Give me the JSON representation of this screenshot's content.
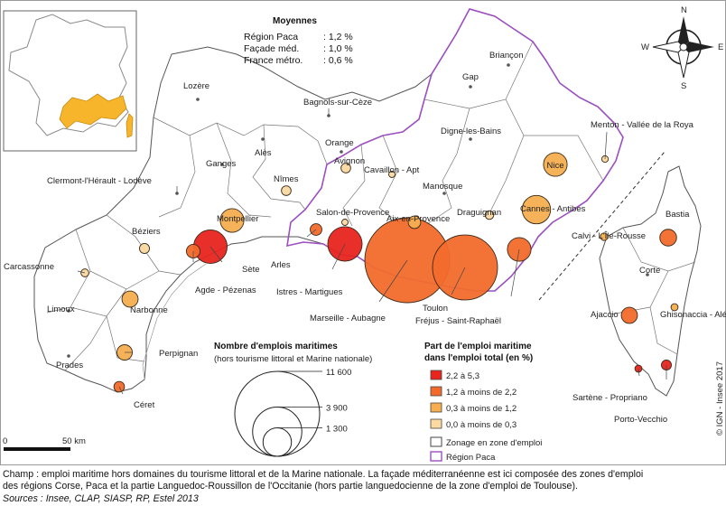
{
  "averages": {
    "title": "Moyennes",
    "rows": [
      {
        "label": "Région Paca",
        "value": ": 1,2 %"
      },
      {
        "label": "Façade méd.",
        "value": ": 1,0 %"
      },
      {
        "label": "France métro.",
        "value": ": 0,6 %"
      }
    ]
  },
  "compass": {
    "n": "N",
    "s": "S",
    "e": "E",
    "w": "W"
  },
  "size_legend": {
    "title": "Nombre d'emplois maritimes",
    "subtitle": "(hors tourisme littoral et Marine nationale)",
    "values": [
      11600,
      3900,
      1300
    ],
    "labels": [
      "11 600",
      "3 900",
      "1 300"
    ]
  },
  "color_legend": {
    "title_line1": "Part de l'emploi maritime",
    "title_line2": "dans l'emploi total (en %)",
    "classes": [
      {
        "label": "2,2 à 5,3",
        "color": "#e8241f"
      },
      {
        "label": "1,2 à moins de 2,2",
        "color": "#f26b2c"
      },
      {
        "label": "0,3 à moins de 1,2",
        "color": "#f6ae4f"
      },
      {
        "label": "0,0 à moins de 0,3",
        "color": "#fbd9a0"
      }
    ],
    "zone_label": "Zonage en zone d'emploi",
    "region_label": "Région Paca",
    "region_color": "#9b4fc0"
  },
  "scale": {
    "start": "0",
    "end": "50 km"
  },
  "copyright": "© IGN - Insee 2017",
  "places": [
    {
      "name": "Lozère",
      "cls": "none",
      "emplois": 0
    },
    {
      "name": "Bagnols-sur-Cèze",
      "cls": "none",
      "emplois": 0
    },
    {
      "name": "Briançon",
      "cls": "none",
      "emplois": 0
    },
    {
      "name": "Gap",
      "cls": "none",
      "emplois": 0
    },
    {
      "name": "Digne-les-Bains",
      "cls": "none",
      "emplois": 0
    },
    {
      "name": "Alès",
      "cls": "none",
      "emplois": 0
    },
    {
      "name": "Orange",
      "cls": "none",
      "emplois": 0
    },
    {
      "name": "Ganges",
      "cls": "none",
      "emplois": 0
    },
    {
      "name": "Avignon",
      "cls": 3,
      "emplois": 150
    },
    {
      "name": "Menton - Vallée de la Roya",
      "cls": 3,
      "emplois": 70
    },
    {
      "name": "Nîmes",
      "cls": 3,
      "emplois": 150
    },
    {
      "name": "Cavaillon - Apt",
      "cls": 3,
      "emplois": 40
    },
    {
      "name": "Nice",
      "cls": 2,
      "emplois": 900
    },
    {
      "name": "Manosque",
      "cls": "none",
      "emplois": 0
    },
    {
      "name": "Clermont-l'Hérault - Lodève",
      "cls": "none",
      "emplois": 0
    },
    {
      "name": "Cannes - Antibes",
      "cls": 2,
      "emplois": 1300
    },
    {
      "name": "Draguignan",
      "cls": 3,
      "emplois": 120
    },
    {
      "name": "Montpellier",
      "cls": 2,
      "emplois": 900
    },
    {
      "name": "Salon-de-Provence",
      "cls": 3,
      "emplois": 40
    },
    {
      "name": "Aix-en-Provence",
      "cls": 2,
      "emplois": 250
    },
    {
      "name": "Bastia",
      "cls": 1,
      "emplois": 450
    },
    {
      "name": "Calvi - L'Île-Rousse",
      "cls": 2,
      "emplois": 90
    },
    {
      "name": "Béziers",
      "cls": 3,
      "emplois": 160
    },
    {
      "name": "Corte",
      "cls": "none",
      "emplois": 0
    },
    {
      "name": "Sète",
      "cls": 0,
      "emplois": 1800
    },
    {
      "name": "Arles",
      "cls": 1,
      "emplois": 220
    },
    {
      "name": "Carcassonne",
      "cls": 3,
      "emplois": 100
    },
    {
      "name": "Agde - Pézenas",
      "cls": 1,
      "emplois": 300
    },
    {
      "name": "Istres - Martigues",
      "cls": 0,
      "emplois": 1900
    },
    {
      "name": "Marseille - Aubagne",
      "cls": 1,
      "emplois": 11600
    },
    {
      "name": "Toulon",
      "cls": 1,
      "emplois": 6800
    },
    {
      "name": "Fréjus - Saint-Raphaël",
      "cls": 1,
      "emplois": 900
    },
    {
      "name": "Ajaccio",
      "cls": 1,
      "emplois": 420
    },
    {
      "name": "Ghisonaccia - Aléria",
      "cls": 2,
      "emplois": 80
    },
    {
      "name": "Limoux",
      "cls": "none",
      "emplois": 0
    },
    {
      "name": "Narbonne",
      "cls": 2,
      "emplois": 420
    },
    {
      "name": "Perpignan",
      "cls": 2,
      "emplois": 380
    },
    {
      "name": "Prades",
      "cls": "none",
      "emplois": 0
    },
    {
      "name": "Sartène - Propriano",
      "cls": 0,
      "emplois": 80
    },
    {
      "name": "Porto-Vecchio",
      "cls": 0,
      "emplois": 160
    },
    {
      "name": "Céret",
      "cls": 1,
      "emplois": 180
    }
  ],
  "caption": {
    "line1": "Champ : emploi maritime hors domaines du tourisme littoral et de la Marine nationale. La façade méditerranéenne est ici composée des zones d'emploi",
    "line2": "des régions Corse, Paca et la partie Languedoc-Roussillon de l'Occitanie (hors partie languedocienne de la zone d'emploi de Toulouse).",
    "sources": "Sources : Insee, CLAP, SIASP, RP, Estel 2013"
  }
}
